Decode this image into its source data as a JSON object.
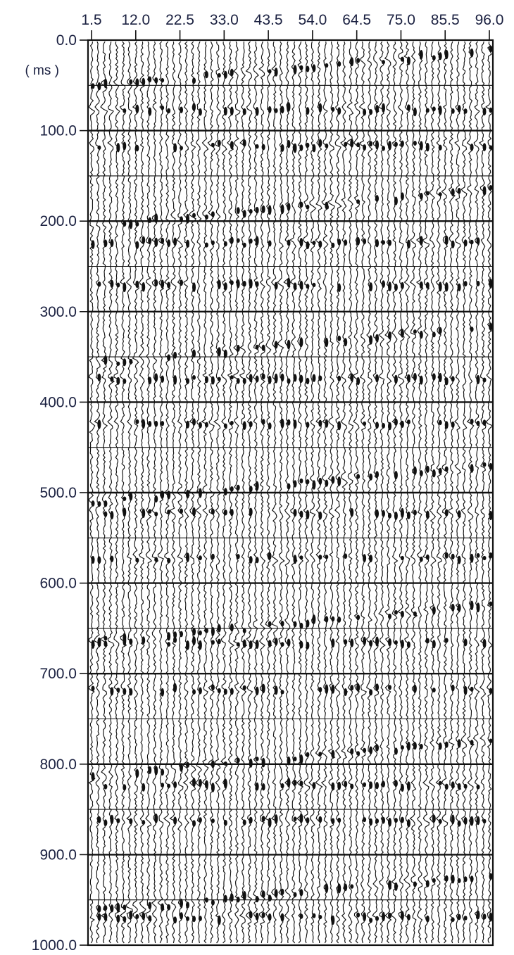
{
  "chart_data": {
    "type": "seismic_wiggle",
    "x_tick_labels": [
      "1.5",
      "12.0",
      "22.5",
      "33.0",
      "43.5",
      "54.0",
      "64.5",
      "75.0",
      "85.5",
      "96.0"
    ],
    "x_ticks": [
      1.5,
      12.0,
      22.5,
      33.0,
      43.5,
      54.0,
      64.5,
      75.0,
      85.5,
      96.0
    ],
    "xlim": [
      1.5,
      96.0
    ],
    "y_tick_labels": [
      "0.0",
      "100.0",
      "200.0",
      "300.0",
      "400.0",
      "500.0",
      "600.0",
      "700.0",
      "800.0",
      "900.0",
      "1000.0"
    ],
    "y_ticks": [
      0,
      100,
      200,
      300,
      400,
      500,
      600,
      700,
      800,
      900,
      1000
    ],
    "ylim": [
      0,
      1000
    ],
    "y_unit": "( ms )",
    "y_inverted": true,
    "trace_count": 64,
    "horizontal_grid_interval_ms": 50,
    "colors": {
      "ink": "#111111",
      "label": "#1a2040",
      "background": "#ffffff"
    }
  }
}
